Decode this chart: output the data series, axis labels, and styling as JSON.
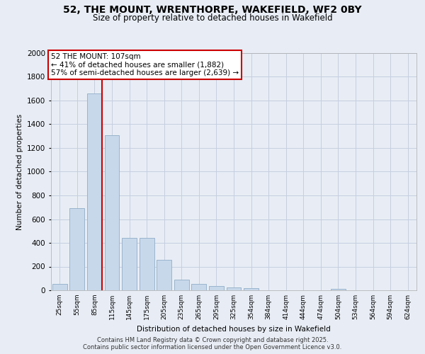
{
  "title_line1": "52, THE MOUNT, WRENTHORPE, WAKEFIELD, WF2 0BY",
  "title_line2": "Size of property relative to detached houses in Wakefield",
  "xlabel": "Distribution of detached houses by size in Wakefield",
  "ylabel": "Number of detached properties",
  "bar_color": "#c8d8eb",
  "bar_edge_color": "#9ab4cc",
  "grid_color": "#c5cfe0",
  "background_color": "#e8edf5",
  "bins": [
    "25sqm",
    "55sqm",
    "85sqm",
    "115sqm",
    "145sqm",
    "175sqm",
    "205sqm",
    "235sqm",
    "265sqm",
    "295sqm",
    "325sqm",
    "354sqm",
    "384sqm",
    "414sqm",
    "444sqm",
    "474sqm",
    "504sqm",
    "534sqm",
    "564sqm",
    "594sqm",
    "624sqm"
  ],
  "values": [
    55,
    690,
    1660,
    1310,
    440,
    440,
    255,
    90,
    55,
    35,
    25,
    20,
    0,
    0,
    0,
    0,
    10,
    0,
    0,
    0,
    0
  ],
  "property_bin_index": 2,
  "annotation_text": "52 THE MOUNT: 107sqm\n← 41% of detached houses are smaller (1,882)\n57% of semi-detached houses are larger (2,639) →",
  "annotation_box_color": "#ffffff",
  "annotation_box_edge_color": "#cc0000",
  "red_line_color": "#cc0000",
  "ylim": [
    0,
    2000
  ],
  "yticks": [
    0,
    200,
    400,
    600,
    800,
    1000,
    1200,
    1400,
    1600,
    1800,
    2000
  ],
  "footer_line1": "Contains HM Land Registry data © Crown copyright and database right 2025.",
  "footer_line2": "Contains public sector information licensed under the Open Government Licence v3.0."
}
